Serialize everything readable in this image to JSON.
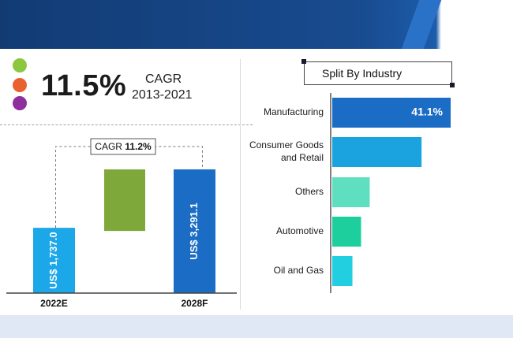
{
  "kpi": {
    "cagr_value": "11.5%",
    "cagr_label": "CAGR",
    "cagr_period": "2013-2021",
    "dot_colors": [
      "#8dc63f",
      "#e9612f",
      "#8e2f9e"
    ]
  },
  "chart_data": [
    {
      "type": "bar",
      "categories": [
        "2022E",
        "2028F"
      ],
      "values": [
        1737.0,
        3291.1
      ],
      "data_labels": [
        "US$ 1,737.0",
        "US$ 3,291.1"
      ],
      "colors": [
        "#1ba7e8",
        "#1b6cc4"
      ],
      "growth_label_prefix": "CAGR ",
      "growth_label_value": "11.2%",
      "growth_block_color": "#7ea93a"
    },
    {
      "type": "bar",
      "orientation": "horizontal",
      "title": "Split By Industry",
      "categories": [
        [
          "Manufacturing"
        ],
        [
          "Consumer Goods",
          "and Retail"
        ],
        [
          "Others"
        ],
        [
          "Automotive"
        ],
        [
          "Oil and Gas"
        ]
      ],
      "values": [
        41.1,
        31,
        13,
        10,
        7
      ],
      "data_labels": [
        "41.1%",
        "",
        "",
        "",
        ""
      ],
      "colors": [
        "#1b6cc4",
        "#1ba3e0",
        "#5ee0c0",
        "#1ecf9e",
        "#22cfe0"
      ]
    }
  ]
}
